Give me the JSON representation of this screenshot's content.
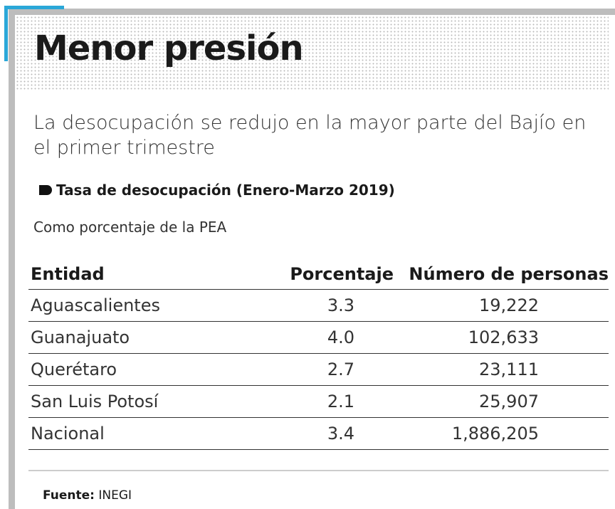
{
  "header": {
    "title": "Menor presión",
    "subtitle": "La desocupación se redujo en la mayor parte del Bajío en el primer trimestre"
  },
  "section": {
    "label": "Tasa de desocupación (Enero-Marzo 2019)",
    "note": "Como porcentaje de la PEA"
  },
  "table": {
    "columns": [
      "Entidad",
      "Porcentaje",
      "Número de personas"
    ],
    "rows": [
      [
        "Aguascalientes",
        "3.3",
        "19,222"
      ],
      [
        "Guanajuato",
        "4.0",
        "102,633"
      ],
      [
        "Querétaro",
        "2.7",
        "23,111"
      ],
      [
        "San Luis Potosí",
        "2.1",
        "25,907"
      ],
      [
        "Nacional",
        "3.4",
        "1,886,205"
      ]
    ]
  },
  "source": {
    "label": "Fuente:",
    "text": "INEGI"
  }
}
